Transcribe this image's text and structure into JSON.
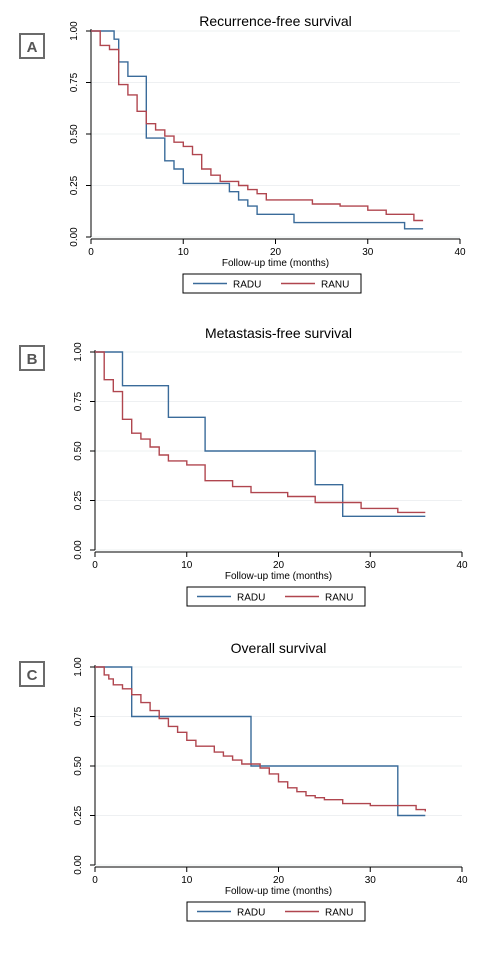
{
  "colors": {
    "radu": "#3a6b9a",
    "ranu": "#b0464f",
    "grid": "#eef0f2",
    "axis": "#000000",
    "panel_label": "#6b6b6b"
  },
  "chart_data": [
    {
      "type": "line",
      "panel_label": "A",
      "title": "Recurrence-free survival",
      "xlabel": "Follow-up time (months)",
      "ylabel": "",
      "xlim": [
        0,
        40
      ],
      "ylim": [
        0,
        1
      ],
      "x_ticks": [
        "0",
        "10",
        "20",
        "30",
        "40"
      ],
      "y_ticks": [
        "0.00",
        "0.25",
        "0.50",
        "0.75",
        "1.00"
      ],
      "grid": true,
      "legend": "bottom",
      "series": [
        {
          "name": "RADU",
          "points": [
            [
              0,
              1.0
            ],
            [
              2.5,
              1.0
            ],
            [
              2.5,
              0.96
            ],
            [
              3,
              0.96
            ],
            [
              3,
              0.85
            ],
            [
              4,
              0.85
            ],
            [
              4,
              0.78
            ],
            [
              6,
              0.78
            ],
            [
              6,
              0.48
            ],
            [
              8,
              0.48
            ],
            [
              8,
              0.37
            ],
            [
              9,
              0.37
            ],
            [
              9,
              0.33
            ],
            [
              10,
              0.33
            ],
            [
              10,
              0.26
            ],
            [
              15,
              0.26
            ],
            [
              15,
              0.22
            ],
            [
              16,
              0.22
            ],
            [
              16,
              0.18
            ],
            [
              17,
              0.18
            ],
            [
              17,
              0.15
            ],
            [
              18,
              0.15
            ],
            [
              18,
              0.11
            ],
            [
              22,
              0.11
            ],
            [
              22,
              0.07
            ],
            [
              34,
              0.07
            ],
            [
              34,
              0.04
            ],
            [
              36,
              0.04
            ]
          ]
        },
        {
          "name": "RANU",
          "points": [
            [
              0,
              1.0
            ],
            [
              1,
              1.0
            ],
            [
              1,
              0.93
            ],
            [
              2,
              0.93
            ],
            [
              2,
              0.91
            ],
            [
              3,
              0.91
            ],
            [
              3,
              0.74
            ],
            [
              4,
              0.74
            ],
            [
              4,
              0.69
            ],
            [
              5,
              0.69
            ],
            [
              5,
              0.61
            ],
            [
              6,
              0.61
            ],
            [
              6,
              0.55
            ],
            [
              7,
              0.55
            ],
            [
              7,
              0.52
            ],
            [
              8,
              0.52
            ],
            [
              8,
              0.49
            ],
            [
              9,
              0.49
            ],
            [
              9,
              0.46
            ],
            [
              10,
              0.46
            ],
            [
              10,
              0.44
            ],
            [
              11,
              0.44
            ],
            [
              11,
              0.4
            ],
            [
              12,
              0.4
            ],
            [
              12,
              0.33
            ],
            [
              13,
              0.33
            ],
            [
              13,
              0.3
            ],
            [
              14,
              0.3
            ],
            [
              14,
              0.27
            ],
            [
              16,
              0.27
            ],
            [
              16,
              0.25
            ],
            [
              17,
              0.25
            ],
            [
              17,
              0.23
            ],
            [
              18,
              0.23
            ],
            [
              18,
              0.21
            ],
            [
              19,
              0.21
            ],
            [
              19,
              0.18
            ],
            [
              24,
              0.18
            ],
            [
              24,
              0.16
            ],
            [
              27,
              0.16
            ],
            [
              27,
              0.15
            ],
            [
              30,
              0.15
            ],
            [
              30,
              0.13
            ],
            [
              32,
              0.13
            ],
            [
              32,
              0.11
            ],
            [
              35,
              0.11
            ],
            [
              35,
              0.08
            ],
            [
              36,
              0.08
            ]
          ]
        }
      ]
    },
    {
      "type": "line",
      "panel_label": "B",
      "title": "Metastasis-free survival",
      "xlabel": "Follow-up time (months)",
      "ylabel": "",
      "xlim": [
        0,
        40
      ],
      "ylim": [
        0,
        1
      ],
      "x_ticks": [
        "0",
        "10",
        "20",
        "30",
        "40"
      ],
      "y_ticks": [
        "0.00",
        "0.25",
        "0.50",
        "0.75",
        "1.00"
      ],
      "grid": true,
      "legend": "bottom",
      "series": [
        {
          "name": "RADU",
          "points": [
            [
              0,
              1.0
            ],
            [
              3,
              1.0
            ],
            [
              3,
              0.83
            ],
            [
              8,
              0.83
            ],
            [
              8,
              0.67
            ],
            [
              12,
              0.67
            ],
            [
              12,
              0.5
            ],
            [
              24,
              0.5
            ],
            [
              24,
              0.33
            ],
            [
              27,
              0.33
            ],
            [
              27,
              0.17
            ],
            [
              36,
              0.17
            ]
          ]
        },
        {
          "name": "RANU",
          "points": [
            [
              0,
              1.0
            ],
            [
              1,
              1.0
            ],
            [
              1,
              0.86
            ],
            [
              2,
              0.86
            ],
            [
              2,
              0.8
            ],
            [
              3,
              0.8
            ],
            [
              3,
              0.66
            ],
            [
              4,
              0.66
            ],
            [
              4,
              0.59
            ],
            [
              5,
              0.59
            ],
            [
              5,
              0.56
            ],
            [
              6,
              0.56
            ],
            [
              6,
              0.52
            ],
            [
              7,
              0.52
            ],
            [
              7,
              0.48
            ],
            [
              8,
              0.48
            ],
            [
              8,
              0.45
            ],
            [
              10,
              0.45
            ],
            [
              10,
              0.43
            ],
            [
              12,
              0.43
            ],
            [
              12,
              0.35
            ],
            [
              15,
              0.35
            ],
            [
              15,
              0.32
            ],
            [
              17,
              0.32
            ],
            [
              17,
              0.29
            ],
            [
              21,
              0.29
            ],
            [
              21,
              0.27
            ],
            [
              24,
              0.27
            ],
            [
              24,
              0.24
            ],
            [
              29,
              0.24
            ],
            [
              29,
              0.21
            ],
            [
              33,
              0.21
            ],
            [
              33,
              0.19
            ],
            [
              36,
              0.19
            ]
          ]
        }
      ]
    },
    {
      "type": "line",
      "panel_label": "C",
      "title": "Overall survival",
      "xlabel": "Follow-up time (months)",
      "ylabel": "",
      "xlim": [
        0,
        40
      ],
      "ylim": [
        0,
        1
      ],
      "x_ticks": [
        "0",
        "10",
        "20",
        "30",
        "40"
      ],
      "y_ticks": [
        "0.00",
        "0.25",
        "0.50",
        "0.75",
        "1.00"
      ],
      "grid": true,
      "legend": "bottom",
      "series": [
        {
          "name": "RADU",
          "points": [
            [
              0,
              1.0
            ],
            [
              4,
              1.0
            ],
            [
              4,
              0.75
            ],
            [
              17,
              0.75
            ],
            [
              17,
              0.5
            ],
            [
              33,
              0.5
            ],
            [
              33,
              0.25
            ],
            [
              36,
              0.25
            ]
          ]
        },
        {
          "name": "RANU",
          "points": [
            [
              0,
              1.0
            ],
            [
              1,
              1.0
            ],
            [
              1,
              0.96
            ],
            [
              1.5,
              0.96
            ],
            [
              1.5,
              0.94
            ],
            [
              2,
              0.94
            ],
            [
              2,
              0.91
            ],
            [
              3,
              0.91
            ],
            [
              3,
              0.89
            ],
            [
              4,
              0.89
            ],
            [
              4,
              0.86
            ],
            [
              5,
              0.86
            ],
            [
              5,
              0.82
            ],
            [
              6,
              0.82
            ],
            [
              6,
              0.78
            ],
            [
              7,
              0.78
            ],
            [
              7,
              0.74
            ],
            [
              8,
              0.74
            ],
            [
              8,
              0.7
            ],
            [
              9,
              0.7
            ],
            [
              9,
              0.67
            ],
            [
              10,
              0.67
            ],
            [
              10,
              0.63
            ],
            [
              11,
              0.63
            ],
            [
              11,
              0.6
            ],
            [
              13,
              0.6
            ],
            [
              13,
              0.57
            ],
            [
              14,
              0.57
            ],
            [
              14,
              0.55
            ],
            [
              15,
              0.55
            ],
            [
              15,
              0.53
            ],
            [
              16,
              0.53
            ],
            [
              16,
              0.51
            ],
            [
              18,
              0.51
            ],
            [
              18,
              0.49
            ],
            [
              19,
              0.49
            ],
            [
              19,
              0.46
            ],
            [
              20,
              0.46
            ],
            [
              20,
              0.42
            ],
            [
              21,
              0.42
            ],
            [
              21,
              0.39
            ],
            [
              22,
              0.39
            ],
            [
              22,
              0.37
            ],
            [
              23,
              0.37
            ],
            [
              23,
              0.35
            ],
            [
              24,
              0.35
            ],
            [
              24,
              0.34
            ],
            [
              25,
              0.34
            ],
            [
              25,
              0.33
            ],
            [
              27,
              0.33
            ],
            [
              27,
              0.31
            ],
            [
              30,
              0.31
            ],
            [
              30,
              0.3
            ],
            [
              35,
              0.3
            ],
            [
              35,
              0.28
            ],
            [
              36,
              0.28
            ],
            [
              36,
              0.27
            ]
          ]
        }
      ]
    }
  ]
}
